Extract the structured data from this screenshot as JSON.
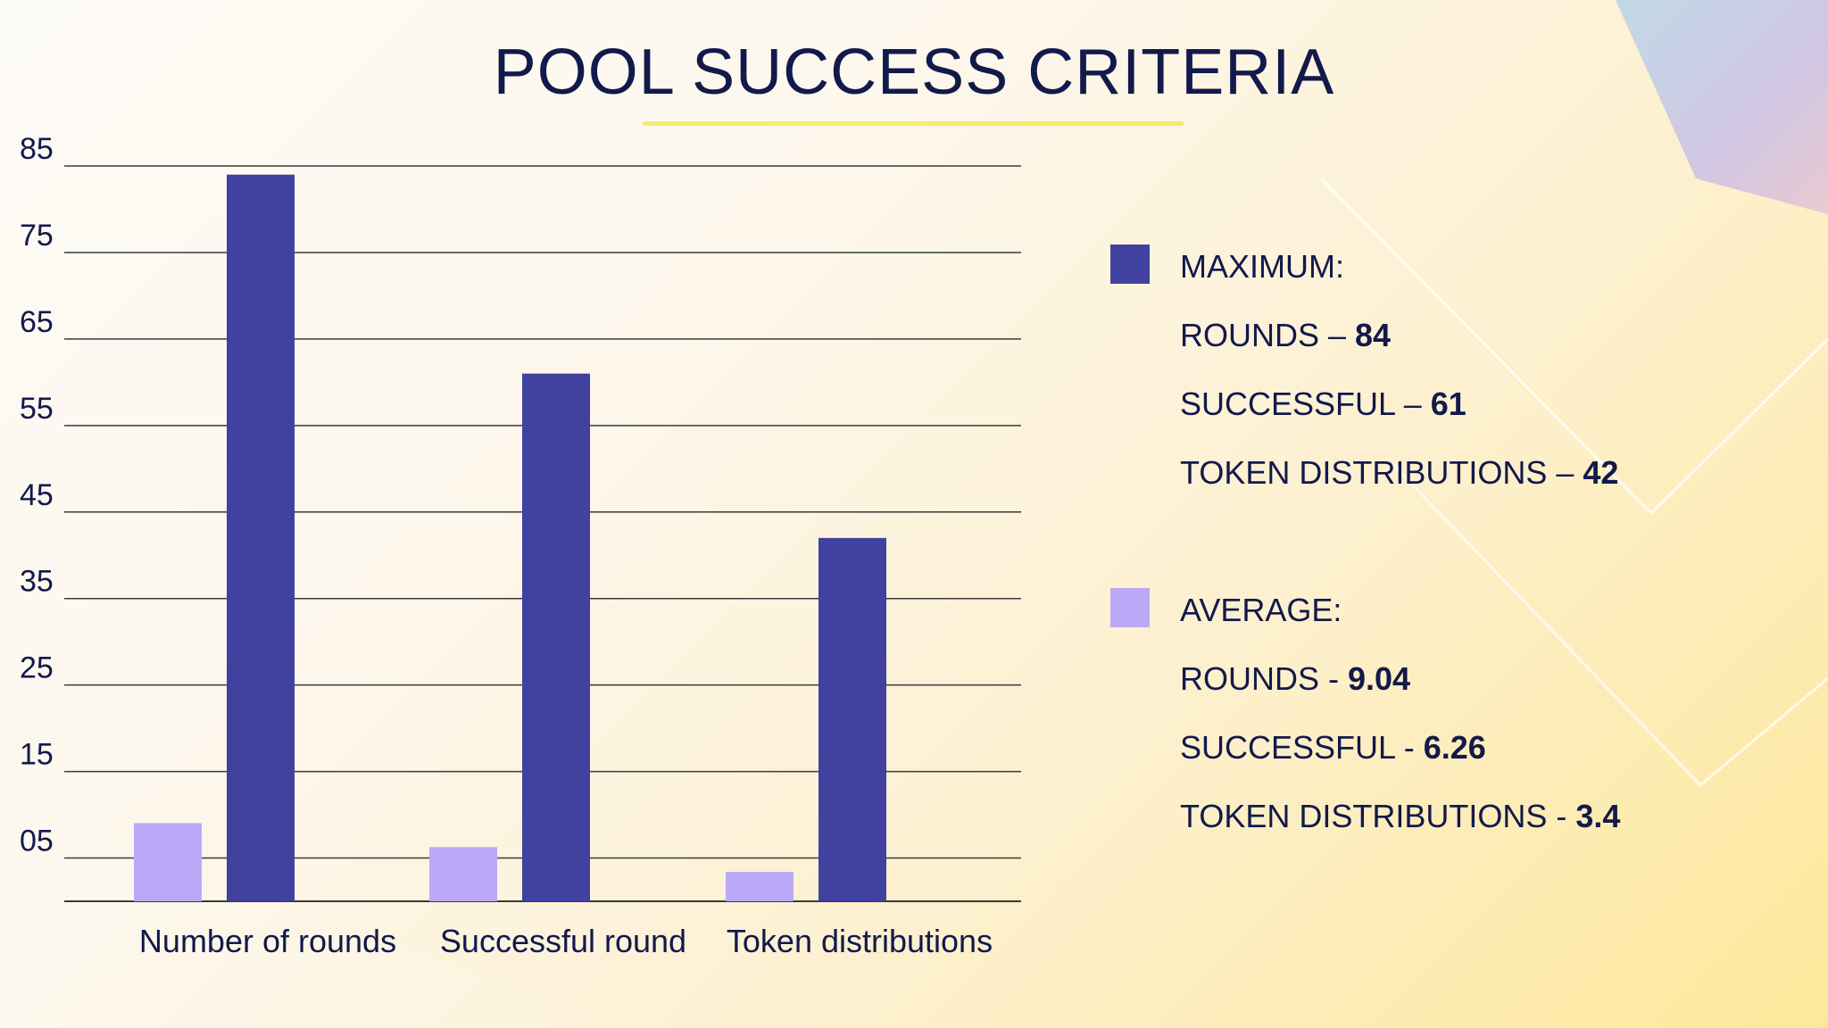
{
  "title": "POOL SUCCESS CRITERIA",
  "colors": {
    "maximum": "#41419f",
    "average": "#bba9f8",
    "text": "#12194b",
    "underline": "#f4ec6e",
    "gridline": "#3a3a3a"
  },
  "chart_data": {
    "type": "bar",
    "categories": [
      "Number of rounds",
      "Successful round",
      "Token distributions"
    ],
    "series": [
      {
        "name": "AVERAGE:",
        "values": [
          9.04,
          6.26,
          3.4
        ]
      },
      {
        "name": "MAXIMUM:",
        "values": [
          84,
          61,
          42
        ]
      }
    ],
    "y_ticks": [
      "05",
      "15",
      "25",
      "35",
      "45",
      "55",
      "65",
      "75",
      "85"
    ],
    "y_tick_values": [
      5,
      15,
      25,
      35,
      45,
      55,
      65,
      75,
      85
    ],
    "ylim": [
      0,
      85
    ],
    "grid": true,
    "legend_position": "right"
  },
  "legend": {
    "maximum": {
      "heading": "MAXIMUM:",
      "lines": [
        {
          "label": "ROUNDS – ",
          "value": "84"
        },
        {
          "label": "SUCCESSFUL – ",
          "value": "61"
        },
        {
          "label": "TOKEN DISTRIBUTIONS – ",
          "value": "42"
        }
      ]
    },
    "average": {
      "heading": "AVERAGE:",
      "lines": [
        {
          "label": "ROUNDS - ",
          "value": "9.04"
        },
        {
          "label": "SUCCESSFUL - ",
          "value": "6.26"
        },
        {
          "label": "TOKEN DISTRIBUTIONS - ",
          "value": "3.4"
        }
      ]
    }
  }
}
